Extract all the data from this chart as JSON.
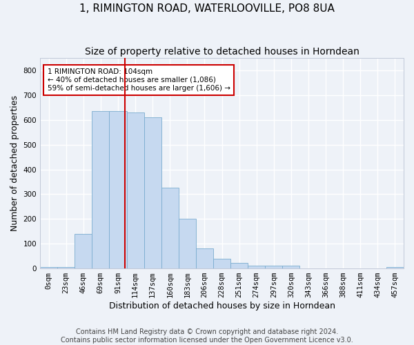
{
  "title": "1, RIMINGTON ROAD, WATERLOOVILLE, PO8 8UA",
  "subtitle": "Size of property relative to detached houses in Horndean",
  "xlabel": "Distribution of detached houses by size in Horndean",
  "ylabel": "Number of detached properties",
  "bin_labels": [
    "0sqm",
    "23sqm",
    "46sqm",
    "69sqm",
    "91sqm",
    "114sqm",
    "137sqm",
    "160sqm",
    "183sqm",
    "206sqm",
    "228sqm",
    "251sqm",
    "274sqm",
    "297sqm",
    "320sqm",
    "343sqm",
    "366sqm",
    "388sqm",
    "411sqm",
    "434sqm",
    "457sqm"
  ],
  "bar_heights": [
    5,
    5,
    140,
    635,
    635,
    630,
    610,
    325,
    200,
    80,
    38,
    22,
    10,
    10,
    10,
    0,
    0,
    0,
    0,
    0,
    5
  ],
  "bar_color": "#c6d9f0",
  "bar_edgecolor": "#7aaccf",
  "vline_x_index": 4.4,
  "vline_color": "#cc0000",
  "annotation_text": "1 RIMINGTON ROAD: 104sqm\n← 40% of detached houses are smaller (1,086)\n59% of semi-detached houses are larger (1,606) →",
  "annotation_box_color": "#ffffff",
  "annotation_box_edgecolor": "#cc0000",
  "ylim": [
    0,
    850
  ],
  "yticks": [
    0,
    100,
    200,
    300,
    400,
    500,
    600,
    700,
    800
  ],
  "footer1": "Contains HM Land Registry data © Crown copyright and database right 2024.",
  "footer2": "Contains public sector information licensed under the Open Government Licence v3.0.",
  "background_color": "#eef2f8",
  "grid_color": "#ffffff",
  "title_fontsize": 11,
  "subtitle_fontsize": 10,
  "axis_label_fontsize": 9,
  "tick_fontsize": 7.5,
  "footer_fontsize": 7
}
